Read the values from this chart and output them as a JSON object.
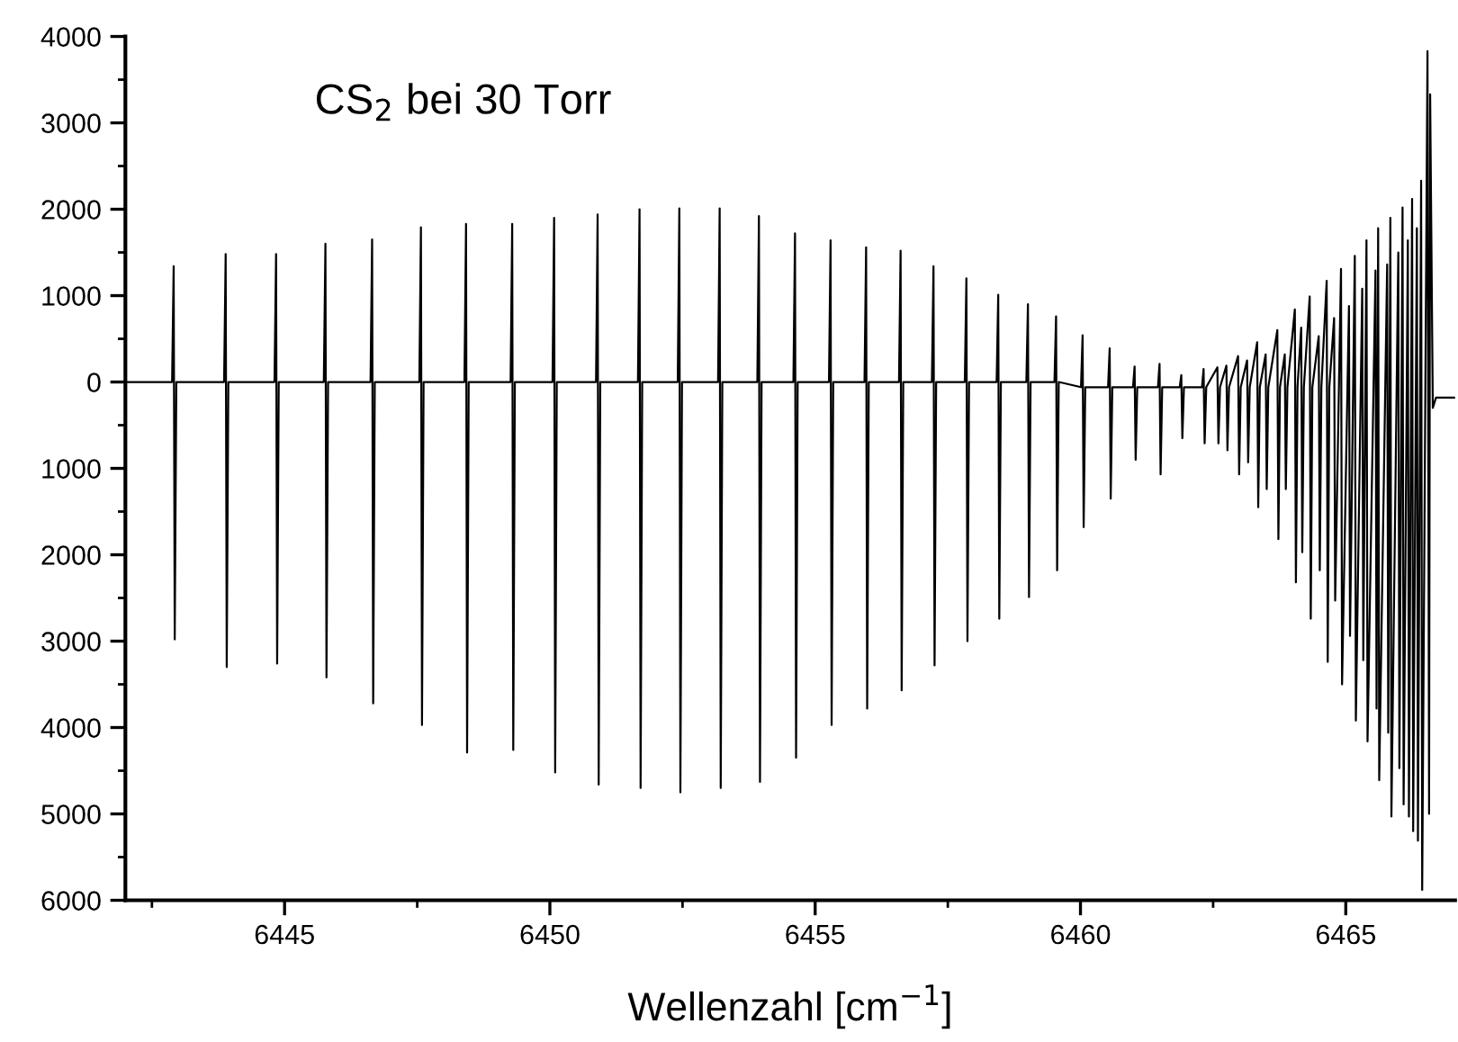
{
  "chart_data": {
    "type": "line",
    "xlabel": "Wellenzahl [cm$^{−1}$]",
    "annotations": [
      "CS$_{2}$ bei 30 Torr"
    ],
    "xlim": [
      6442.0,
      6467.06
    ],
    "ylim": [
      -6000,
      4000
    ],
    "xticks": [
      {
        "value": 6442.5,
        "label": null
      },
      6445,
      {
        "value": 6447.5,
        "label": null
      },
      6450,
      {
        "value": 6452.5,
        "label": null
      },
      6455,
      {
        "value": 6457.5,
        "label": null
      },
      6460,
      {
        "value": 6462.5,
        "label": null
      },
      6465
    ],
    "yticks": [
      4000,
      {
        "value": 3500,
        "label": null
      },
      3000,
      {
        "value": 2500,
        "label": null
      },
      2000,
      {
        "value": 1500,
        "label": null
      },
      1000,
      {
        "value": 500,
        "label": null
      },
      0,
      {
        "value": -500,
        "label": null
      },
      {
        "value": -1000,
        "label": "1000"
      },
      {
        "value": -1500,
        "label": null
      },
      {
        "value": -2000,
        "label": "2000"
      },
      {
        "value": -2500,
        "label": null
      },
      {
        "value": -3000,
        "label": "3000"
      },
      {
        "value": -3500,
        "label": null
      },
      {
        "value": -4000,
        "label": "4000"
      },
      {
        "value": -4500,
        "label": null
      },
      {
        "value": -5000,
        "label": "5000"
      },
      {
        "value": -5500,
        "label": null
      },
      {
        "value": -6000,
        "label": "6000"
      }
    ],
    "series": [
      {
        "color": "#000000",
        "x": [
          6442.0,
          6442.88,
          6442.91,
          6442.93,
          6442.96,
          6443.86,
          6443.89,
          6443.91,
          6443.94,
          6444.81,
          6444.84,
          6444.86,
          6444.89,
          6445.74,
          6445.77,
          6445.79,
          6445.82,
          6446.62,
          6446.65,
          6446.67,
          6446.7,
          6447.54,
          6447.57,
          6447.59,
          6447.62,
          6448.39,
          6448.42,
          6448.44,
          6448.47,
          6449.26,
          6449.29,
          6449.31,
          6449.34,
          6450.05,
          6450.08,
          6450.1,
          6450.13,
          6450.87,
          6450.9,
          6450.92,
          6450.95,
          6451.66,
          6451.69,
          6451.71,
          6451.74,
          6452.41,
          6452.44,
          6452.46,
          6452.49,
          6453.17,
          6453.2,
          6453.22,
          6453.25,
          6453.91,
          6453.94,
          6453.96,
          6453.99,
          6454.59,
          6454.62,
          6454.64,
          6454.67,
          6455.26,
          6455.29,
          6455.31,
          6455.34,
          6455.93,
          6455.96,
          6455.98,
          6456.01,
          6456.58,
          6456.61,
          6456.63,
          6456.66,
          6457.2,
          6457.23,
          6457.25,
          6457.28,
          6457.82,
          6457.85,
          6457.87,
          6457.9,
          6458.42,
          6458.45,
          6458.47,
          6458.5,
          6458.98,
          6459.01,
          6459.03,
          6459.06,
          6459.51,
          6459.54,
          6459.56,
          6459.59,
          6460.01,
          6460.04,
          6460.06,
          6460.09,
          6460.52,
          6460.55,
          6460.57,
          6460.6,
          6460.99,
          6461.02,
          6461.04,
          6461.07,
          6461.46,
          6461.49,
          6461.51,
          6461.54,
          6461.87,
          6461.9,
          6461.92,
          6461.95,
          6462.29,
          6462.32,
          6462.34,
          6462.37,
          6462.58,
          6462.6,
          6462.63,
          6462.75,
          6462.77,
          6462.8,
          6462.97,
          6462.99,
          6463.02,
          6463.14,
          6463.16,
          6463.19,
          6463.33,
          6463.35,
          6463.38,
          6463.49,
          6463.51,
          6463.54,
          6463.71,
          6463.73,
          6463.76,
          6463.85,
          6463.87,
          6463.9,
          6464.04,
          6464.06,
          6464.09,
          6464.16,
          6464.18,
          6464.21,
          6464.32,
          6464.34,
          6464.37,
          6464.49,
          6464.51,
          6464.54,
          6464.64,
          6464.66,
          6464.69,
          6464.78,
          6464.8,
          6464.91,
          6464.93,
          6465.06,
          6465.08,
          6465.17,
          6465.19,
          6465.31,
          6465.33,
          6465.39,
          6465.41,
          6465.56,
          6465.58,
          6465.61,
          6465.63,
          6465.78,
          6465.8,
          6465.84,
          6465.86,
          6465.99,
          6466.01,
          6466.07,
          6466.09,
          6466.17,
          6466.19,
          6466.25,
          6466.27,
          6466.34,
          6466.36,
          6466.42,
          6466.44,
          6466.54,
          6466.57,
          6466.59,
          6466.64,
          6466.7,
          6467.06
        ],
        "values": [
          0,
          0,
          1340,
          -2980,
          0,
          0,
          1480,
          -3300,
          0,
          0,
          1480,
          -3260,
          0,
          0,
          1600,
          -3420,
          0,
          0,
          1650,
          -3720,
          0,
          0,
          1790,
          -3970,
          0,
          0,
          1830,
          -4290,
          0,
          0,
          1830,
          -4260,
          0,
          0,
          1900,
          -4520,
          0,
          0,
          1940,
          -4660,
          0,
          0,
          2000,
          -4700,
          0,
          0,
          2010,
          -4750,
          0,
          0,
          2010,
          -4700,
          0,
          0,
          1920,
          -4630,
          0,
          0,
          1720,
          -4350,
          0,
          0,
          1640,
          -3970,
          0,
          0,
          1560,
          -3780,
          0,
          0,
          1520,
          -3570,
          0,
          0,
          1340,
          -3280,
          0,
          0,
          1200,
          -3000,
          0,
          0,
          1010,
          -2740,
          0,
          0,
          900,
          -2490,
          0,
          0,
          760,
          -2180,
          0,
          -60,
          540,
          -1680,
          -60,
          -60,
          390,
          -1350,
          -60,
          -60,
          180,
          -900,
          -60,
          -60,
          210,
          -1070,
          -60,
          -60,
          80,
          -650,
          -60,
          -60,
          150,
          -710,
          -60,
          170,
          -710,
          -60,
          190,
          -790,
          -60,
          300,
          -1070,
          -60,
          250,
          -930,
          -60,
          460,
          -1450,
          -60,
          320,
          -1240,
          -60,
          600,
          -1820,
          -60,
          320,
          -1240,
          -60,
          840,
          -2320,
          -60,
          630,
          -1970,
          -60,
          990,
          -2740,
          -60,
          530,
          -2180,
          -60,
          1170,
          -3240,
          -60,
          740,
          -2530,
          1310,
          -3500,
          880,
          -2940,
          1460,
          -3920,
          1080,
          -3220,
          1640,
          -4160,
          1290,
          -3780,
          1780,
          -4610,
          1360,
          -4060,
          1900,
          -5030,
          1500,
          -4470,
          2020,
          -4890,
          1640,
          -5030,
          2120,
          -5200,
          1780,
          -5310,
          2330,
          -5880,
          3830,
          -5000,
          3330,
          -300,
          -180,
          -180
        ]
      }
    ]
  }
}
